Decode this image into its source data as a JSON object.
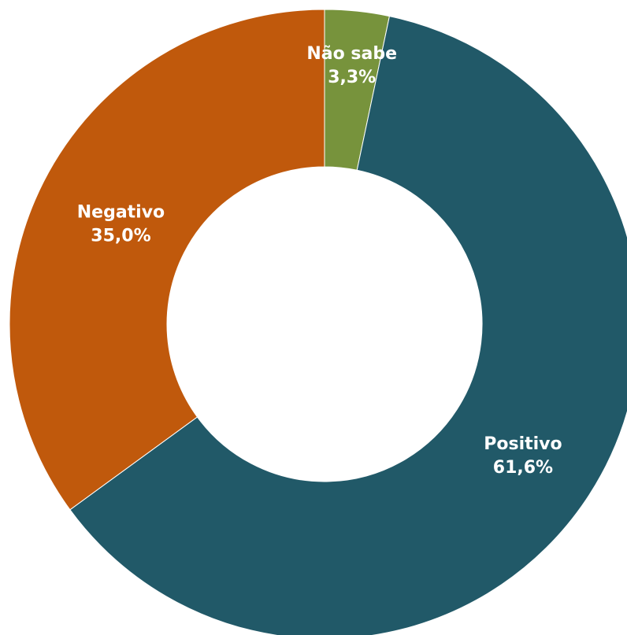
{
  "chart_data": {
    "type": "pie",
    "variant": "donut",
    "start": "top",
    "direction": "clockwise",
    "slices": [
      {
        "label": "Não sabe",
        "value": 3.3,
        "display": "3,3%",
        "color": "#77933C"
      },
      {
        "label": "Positivo",
        "value": 61.6,
        "display": "61,6%",
        "color": "#215968"
      },
      {
        "label": "Negativo",
        "value": 35.0,
        "display": "35,0%",
        "color": "#C0590C"
      }
    ],
    "label_color": "#FFFFFF",
    "legend": "none"
  }
}
